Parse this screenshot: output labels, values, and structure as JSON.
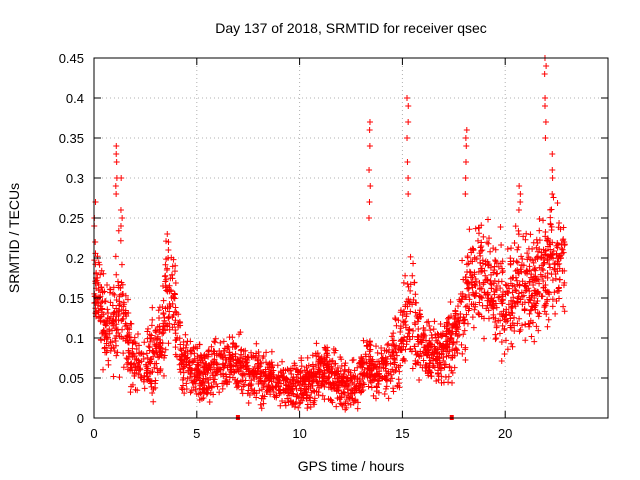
{
  "chart_data": {
    "type": "scatter",
    "title": "Day 137 of 2018, SRMTID for receiver qsec",
    "xlabel": "GPS time / hours",
    "ylabel": "SRMTID / TECUs",
    "xlim": [
      0,
      25
    ],
    "ylim": [
      0,
      0.45
    ],
    "grid": true,
    "marker": "plus",
    "color": "#ff0000",
    "x_ticks": [
      0,
      5,
      10,
      15,
      20
    ],
    "x_tick_labels": [
      "0",
      "5",
      "10",
      "15",
      "20"
    ],
    "y_ticks": [
      0,
      0.05,
      0.1,
      0.15,
      0.2,
      0.25,
      0.3,
      0.35,
      0.4,
      0.45
    ],
    "y_tick_labels": [
      "0",
      "0.05",
      "0.1",
      "0.15",
      "0.2",
      "0.25",
      "0.3",
      "0.35",
      "0.4",
      "0.45"
    ],
    "envelope": {
      "x": [
        0,
        0.3,
        0.6,
        1.0,
        1.3,
        1.6,
        2.0,
        2.5,
        3.0,
        3.3,
        3.6,
        3.9,
        4.3,
        4.8,
        5.5,
        6.5,
        7.5,
        8.5,
        9.5,
        10.5,
        11.0,
        11.5,
        12.0,
        12.5,
        13.0,
        13.4,
        13.8,
        14.2,
        14.7,
        15.0,
        15.4,
        15.7,
        16.0,
        16.5,
        17.0,
        17.5,
        17.9,
        18.3,
        18.7,
        19.2,
        19.7,
        20.2,
        20.7,
        21.2,
        21.6,
        22.0,
        22.4,
        22.8
      ],
      "median": [
        0.16,
        0.15,
        0.1,
        0.12,
        0.15,
        0.1,
        0.07,
        0.07,
        0.08,
        0.1,
        0.17,
        0.14,
        0.07,
        0.06,
        0.055,
        0.07,
        0.06,
        0.05,
        0.04,
        0.045,
        0.06,
        0.055,
        0.045,
        0.04,
        0.05,
        0.07,
        0.06,
        0.06,
        0.08,
        0.1,
        0.14,
        0.11,
        0.09,
        0.08,
        0.08,
        0.1,
        0.14,
        0.17,
        0.18,
        0.17,
        0.15,
        0.15,
        0.17,
        0.16,
        0.17,
        0.19,
        0.2,
        0.19
      ],
      "spread": [
        0.03,
        0.04,
        0.04,
        0.05,
        0.06,
        0.04,
        0.03,
        0.03,
        0.04,
        0.04,
        0.05,
        0.04,
        0.025,
        0.025,
        0.025,
        0.025,
        0.025,
        0.022,
        0.018,
        0.022,
        0.025,
        0.025,
        0.022,
        0.02,
        0.025,
        0.03,
        0.025,
        0.025,
        0.03,
        0.04,
        0.05,
        0.04,
        0.035,
        0.03,
        0.03,
        0.04,
        0.05,
        0.05,
        0.05,
        0.05,
        0.05,
        0.05,
        0.05,
        0.05,
        0.05,
        0.05,
        0.05,
        0.04
      ]
    },
    "spikes": [
      {
        "x": 0.05,
        "values": [
          0.27,
          0.25,
          0.24,
          0.22
        ]
      },
      {
        "x": 1.1,
        "values": [
          0.34,
          0.33,
          0.32,
          0.3,
          0.29,
          0.28
        ]
      },
      {
        "x": 1.35,
        "values": [
          0.3,
          0.26,
          0.25,
          0.24
        ]
      },
      {
        "x": 3.6,
        "values": [
          0.23,
          0.22,
          0.21,
          0.2
        ]
      },
      {
        "x": 13.4,
        "values": [
          0.37,
          0.36,
          0.34,
          0.31,
          0.29,
          0.27,
          0.25
        ]
      },
      {
        "x": 15.25,
        "values": [
          0.4,
          0.39,
          0.37,
          0.35,
          0.32,
          0.3,
          0.28
        ]
      },
      {
        "x": 18.1,
        "values": [
          0.36,
          0.35,
          0.34,
          0.32,
          0.3,
          0.28
        ]
      },
      {
        "x": 21.95,
        "values": [
          0.45,
          0.44,
          0.43,
          0.4,
          0.39,
          0.37,
          0.35
        ]
      },
      {
        "x": 22.3,
        "values": [
          0.33,
          0.31,
          0.3,
          0.28
        ]
      },
      {
        "x": 20.7,
        "values": [
          0.29,
          0.28,
          0.27,
          0.26
        ]
      }
    ],
    "zero_markers": [
      7.0,
      17.4
    ],
    "data_end_hour": 22.9
  }
}
